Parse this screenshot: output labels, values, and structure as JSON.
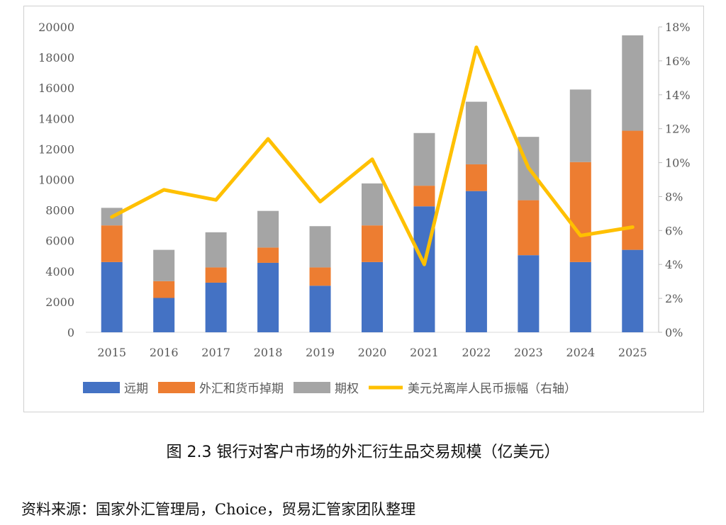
{
  "chart_data": {
    "type": "bar",
    "stacked": true,
    "categories": [
      "2015",
      "2016",
      "2017",
      "2018",
      "2019",
      "2020",
      "2021",
      "2022",
      "2023",
      "2024",
      "2025"
    ],
    "series": [
      {
        "name": "远期",
        "axis": "left",
        "color": "#4472C4",
        "values": [
          4600,
          2250,
          3250,
          4550,
          3050,
          4600,
          8250,
          9250,
          5050,
          4600,
          5400
        ]
      },
      {
        "name": "外汇和货币掉期",
        "axis": "left",
        "color": "#ED7D31",
        "values": [
          2400,
          1100,
          1000,
          1000,
          1200,
          2400,
          1350,
          1750,
          3600,
          6550,
          7800
        ]
      },
      {
        "name": "期权",
        "axis": "left",
        "color": "#A5A5A5",
        "values": [
          1150,
          2050,
          2300,
          2400,
          2700,
          2750,
          3450,
          4100,
          4150,
          4750,
          6250
        ]
      },
      {
        "name": "美元兑离岸人民币振幅（右轴）",
        "axis": "right",
        "type": "line",
        "color": "#FFC000",
        "values": [
          6.8,
          8.4,
          7.8,
          11.4,
          7.7,
          10.2,
          4.0,
          16.8,
          9.7,
          5.7,
          6.2
        ]
      }
    ],
    "ylim": [
      0,
      20000
    ],
    "yticks": [
      "0",
      "2000",
      "4000",
      "6000",
      "8000",
      "10000",
      "12000",
      "14000",
      "16000",
      "18000",
      "20000"
    ],
    "y2lim": [
      0,
      18
    ],
    "y2ticks": [
      "0%",
      "2%",
      "4%",
      "6%",
      "8%",
      "10%",
      "12%",
      "14%",
      "16%",
      "18%"
    ],
    "legend_position": "bottom",
    "grid": false
  },
  "caption": "图 2.3 银行对客户市场的外汇衍生品交易规模（亿美元）",
  "source": "资料来源：国家外汇管理局，Choice，贸易汇管家团队整理"
}
